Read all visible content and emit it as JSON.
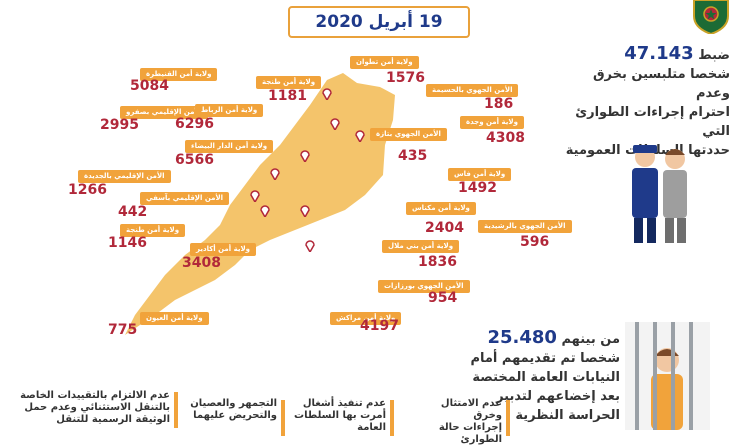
{
  "header": {
    "date": "19 أبريل 2020"
  },
  "colors": {
    "accent": "#f1a33b",
    "number": "#b1283a",
    "navy": "#1f3a8a",
    "map": "#f4c46b"
  },
  "regions": [
    {
      "label": "ولاية أمن القنيطرة",
      "value": "5084"
    },
    {
      "label": "الأمن الإقليمي بصفرو",
      "value": "2995"
    },
    {
      "label": "ولاية أمن الرباط",
      "value": "6296"
    },
    {
      "label": "ولاية أمن الدار البيضاء",
      "value": "6566"
    },
    {
      "label": "الأمن الإقليمي بالجديدة",
      "value": "1266"
    },
    {
      "label": "الأمن الإقليمي بآسفي",
      "value": "442"
    },
    {
      "label": "ولاية أمن طنجة",
      "value": "1181"
    },
    {
      "label": "ولاية أمن تطوان",
      "value": "1576"
    },
    {
      "label": "الأمن الجهوي بالحسيمة",
      "value": "186"
    },
    {
      "label": "ولاية أمن وجدة",
      "value": "4308"
    },
    {
      "label": "الأمن الجهوي بتازة",
      "value": "435"
    },
    {
      "label": "ولاية أمن فاس",
      "value": "1492"
    },
    {
      "label": "ولاية أمن مكناس",
      "value": "2404"
    },
    {
      "label": "الأمن الجهوي بالرشيدية",
      "value": "596"
    },
    {
      "label": "ولاية أمن بني ملال",
      "value": "1836"
    },
    {
      "label": "الأمن الجهوي بورزازات",
      "value": "954"
    },
    {
      "label": "ولاية أمن مراكش",
      "value": "4197"
    },
    {
      "label": "ولاية أمن أكادير",
      "value": "3408"
    },
    {
      "label": "ولاية أمن العيون",
      "value": "775"
    },
    {
      "label": "ولاية أمن طنجة",
      "value": "1146"
    }
  ],
  "summary1": {
    "prefix": "ضبط",
    "count": "47.143",
    "line2": "شخصا متلبسين بخرق وعدم",
    "line3": "احترام إجراءات الطوارئ التي",
    "line4": "حددتها السلطات العمومية"
  },
  "summary2": {
    "prefix": "من بينهم",
    "count": "25.480",
    "line2": "شخصا تم تقديمهم أمام",
    "line3": "النيابات العامة المختصة",
    "line4": "بعد إخضاعهم لتدبير",
    "line5": "الحراسة النظرية"
  },
  "reasons": [
    {
      "line1": "عدم الامتثال وخرق",
      "line2": "إجراءات حالة الطوارئ"
    },
    {
      "line1": "عدم تنفيذ أشغال",
      "line2": "أمرت بها السلطات",
      "line3": "العامة"
    },
    {
      "line1": "التجمهر والعصيان",
      "line2": "والتحريض عليهما"
    },
    {
      "line1": "عدم الالتزام بالتقييدات الخاصة",
      "line2": "بالتنقل الاستثنائي وعدم حمل",
      "line3": "الوثيقة الرسمية للتنقل"
    }
  ]
}
